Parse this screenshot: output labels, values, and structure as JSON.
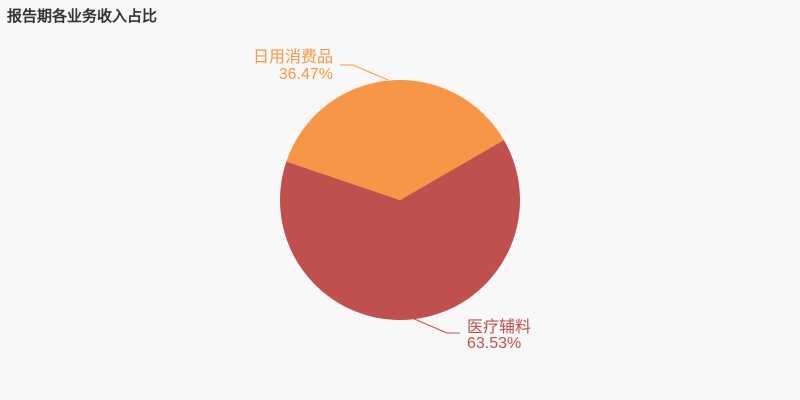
{
  "chart_data": {
    "type": "pie",
    "title": "报告期各业务收入占比",
    "slices": [
      {
        "name": "医疗辅料",
        "value": 63.53,
        "label": "63.53%",
        "color": "#C0504D"
      },
      {
        "name": "日用消费品",
        "value": 36.47,
        "label": "36.47%",
        "color": "#F79646"
      }
    ],
    "legend": "none"
  }
}
